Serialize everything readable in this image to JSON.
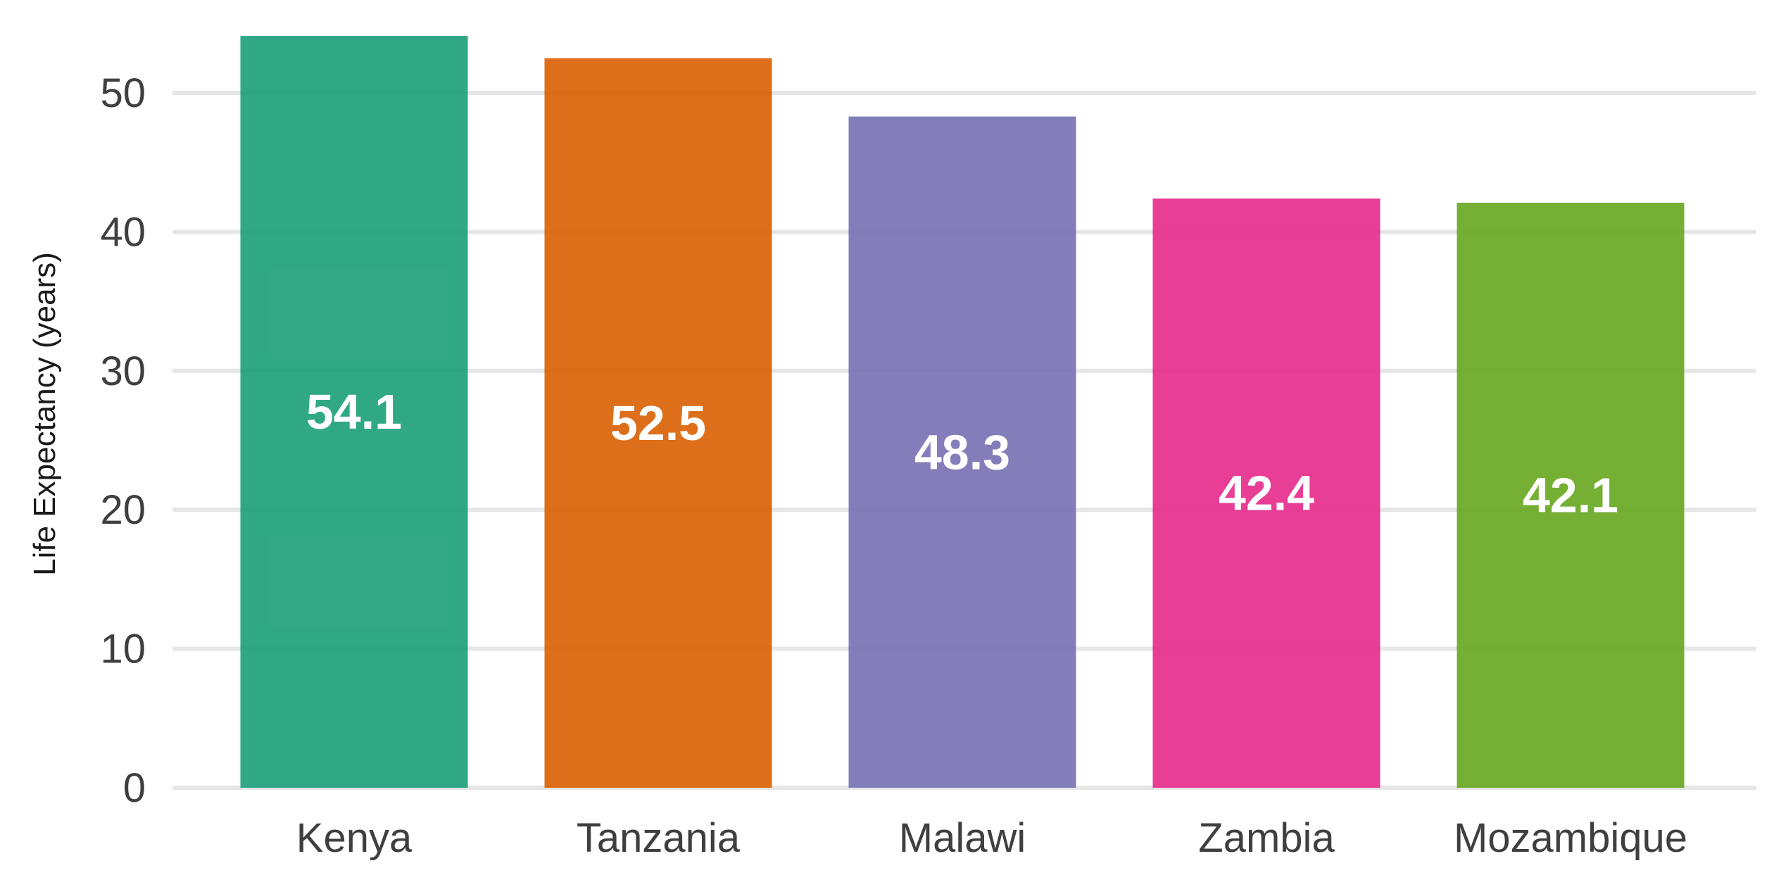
{
  "chart_data": {
    "type": "bar",
    "title": "",
    "xlabel": "",
    "ylabel": "Life Expectancy (years)",
    "categories": [
      "Kenya",
      "Tanzania",
      "Malawi",
      "Zambia",
      "Mozambique"
    ],
    "values": [
      54.1,
      52.5,
      48.3,
      42.4,
      42.1
    ],
    "data_labels": [
      "54.1",
      "52.5",
      "48.3",
      "42.4",
      "42.1"
    ],
    "colors": [
      "#1b9e77",
      "#d95f02",
      "#7570b3",
      "#e7298a",
      "#66a61e"
    ],
    "yticks": [
      0,
      10,
      20,
      30,
      40,
      50
    ],
    "ylim": [
      0,
      55
    ],
    "grid": "horizontal",
    "legend": "none"
  }
}
